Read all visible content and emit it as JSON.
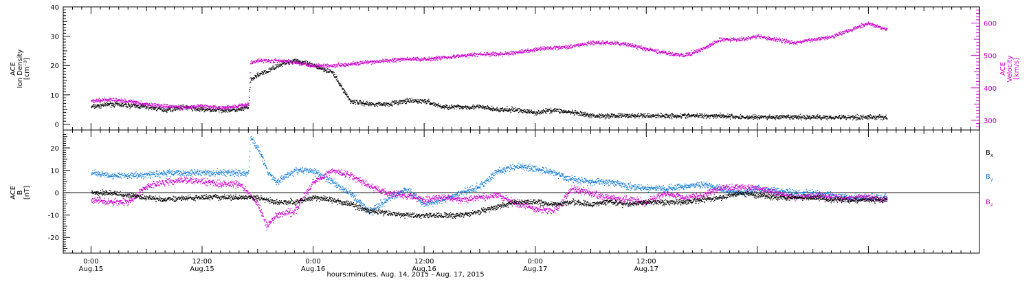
{
  "chart_data": [
    {
      "type": "scatter",
      "panel": "top",
      "ylabel_left": [
        "ACE",
        "Ion Density",
        "[cm⁻³]"
      ],
      "ylabel_right": [
        "ACE",
        "Velocity",
        "[km/s]"
      ],
      "ylim_left": [
        -2,
        40
      ],
      "ylim_right": [
        270,
        650
      ],
      "yticks_left": [
        0,
        10,
        20,
        30,
        40
      ],
      "yticks_right": [
        300,
        400,
        500,
        600
      ],
      "colors": {
        "density": "#000000",
        "velocity": "#cc00cc"
      },
      "series": [
        {
          "name": "",
          "axis": "left",
          "color": "#000000",
          "hours": [
            0,
            2,
            4,
            6,
            8,
            10,
            12,
            14,
            16,
            17,
            17.2,
            18,
            19,
            20,
            22,
            24,
            26,
            28,
            30,
            32,
            34,
            36,
            38,
            40,
            42,
            44,
            46,
            48,
            50,
            52,
            54,
            56,
            58,
            60,
            62,
            64,
            66,
            68,
            70,
            72,
            74,
            76,
            78,
            80,
            82,
            84,
            86
          ],
          "values": [
            6,
            7,
            6.5,
            6,
            5,
            6,
            5,
            5,
            5,
            6,
            15,
            17,
            18,
            20,
            22,
            20,
            18,
            8,
            7,
            7,
            8,
            8,
            6,
            6,
            6,
            5,
            5,
            4,
            5,
            4,
            3,
            3,
            3,
            3,
            3,
            3,
            3,
            3,
            2.5,
            2.5,
            2.5,
            2.5,
            2.5,
            2.5,
            2.5,
            2.5,
            2.5
          ]
        },
        {
          "name": "",
          "axis": "right",
          "color": "#cc00cc",
          "hours": [
            0,
            2,
            4,
            6,
            8,
            10,
            12,
            14,
            16,
            17,
            17.2,
            18,
            20,
            22,
            24,
            26,
            28,
            30,
            32,
            34,
            36,
            38,
            40,
            42,
            44,
            46,
            48,
            50,
            52,
            54,
            56,
            58,
            60,
            62,
            64,
            66,
            68,
            70,
            72,
            74,
            76,
            78,
            80,
            82,
            84,
            86
          ],
          "values": [
            360,
            365,
            360,
            350,
            345,
            340,
            345,
            340,
            345,
            350,
            480,
            485,
            485,
            480,
            470,
            470,
            475,
            480,
            485,
            490,
            490,
            495,
            500,
            505,
            505,
            510,
            520,
            525,
            530,
            540,
            540,
            535,
            520,
            510,
            500,
            520,
            550,
            550,
            560,
            550,
            540,
            550,
            560,
            580,
            600,
            580
          ]
        }
      ]
    },
    {
      "type": "scatter",
      "panel": "bottom",
      "ylabel_left": [
        "ACE",
        "B",
        "[nT]"
      ],
      "ylim": [
        -27,
        28
      ],
      "yticks": [
        -20,
        -10,
        0,
        10,
        20
      ],
      "series": [
        {
          "name": "Bx",
          "color": "#000000",
          "hours": [
            0,
            2,
            4,
            6,
            8,
            10,
            12,
            14,
            16,
            17,
            18,
            20,
            22,
            24,
            26,
            28,
            30,
            32,
            34,
            36,
            38,
            40,
            42,
            44,
            46,
            48,
            50,
            52,
            54,
            56,
            58,
            60,
            62,
            64,
            66,
            68,
            70,
            72,
            74,
            76,
            78,
            80,
            82,
            84,
            86
          ],
          "values": [
            0,
            0,
            -1,
            -2,
            -3,
            -2,
            -2,
            -2,
            -2,
            -2,
            -2,
            -4,
            -4,
            -2,
            -3,
            -5,
            -8,
            -9,
            -10,
            -10,
            -10,
            -10,
            -8,
            -6,
            -4,
            -4,
            -5,
            -4,
            -5,
            -4,
            -5,
            -4,
            -4,
            -4,
            -3,
            -2,
            0,
            -1,
            -2,
            -2,
            -2,
            -3,
            -3,
            -3,
            -3
          ]
        },
        {
          "name": "By",
          "color": "#1a7fd6",
          "hours": [
            0,
            2,
            4,
            6,
            8,
            10,
            12,
            14,
            16,
            17,
            17.2,
            18,
            19,
            20,
            22,
            24,
            26,
            28,
            30,
            32,
            34,
            36,
            38,
            40,
            42,
            44,
            46,
            48,
            50,
            52,
            54,
            56,
            58,
            60,
            62,
            64,
            66,
            68,
            70,
            72,
            74,
            76,
            78,
            80,
            82,
            84,
            86
          ],
          "values": [
            9,
            8,
            8,
            8,
            9,
            9,
            9,
            9,
            9,
            9,
            25,
            20,
            10,
            5,
            10,
            10,
            5,
            0,
            -8,
            -3,
            2,
            -5,
            -3,
            0,
            3,
            10,
            12,
            11,
            9,
            6,
            5,
            5,
            3,
            2,
            2,
            3,
            4,
            2,
            0,
            2,
            1,
            0,
            0,
            -1,
            -2,
            -2,
            -2
          ]
        },
        {
          "name": "Bz",
          "color": "#cc00cc",
          "hours": [
            0,
            2,
            4,
            6,
            8,
            10,
            12,
            14,
            16,
            17,
            18,
            19,
            20,
            22,
            24,
            26,
            28,
            30,
            32,
            34,
            36,
            38,
            40,
            42,
            44,
            46,
            48,
            50,
            52,
            54,
            56,
            58,
            60,
            62,
            64,
            66,
            68,
            70,
            72,
            74,
            76,
            78,
            80,
            82,
            84,
            86
          ],
          "values": [
            -3,
            -4,
            -4,
            3,
            5,
            6,
            5,
            4,
            4,
            0,
            -5,
            -15,
            -10,
            -8,
            5,
            10,
            8,
            3,
            0,
            -1,
            -3,
            -2,
            -3,
            -2,
            -1,
            -5,
            -7,
            -8,
            2,
            0,
            -2,
            -3,
            -4,
            0,
            -2,
            -1,
            2,
            3,
            2,
            0,
            -2,
            -1,
            -2,
            -2,
            -2,
            -3
          ]
        }
      ],
      "legend": [
        "Bx",
        "By",
        "Bz"
      ]
    }
  ],
  "xaxis": {
    "range_hours": [
      -3,
      96
    ],
    "ticks": [
      {
        "hour": 0,
        "time": "0:00",
        "date": "Aug.15"
      },
      {
        "hour": 12,
        "time": "12:00",
        "date": "Aug.15"
      },
      {
        "hour": 24,
        "time": "0:00",
        "date": "Aug.16"
      },
      {
        "hour": 36,
        "time": "12:00",
        "date": "Aug.16"
      },
      {
        "hour": 48,
        "time": "0:00",
        "date": "Aug.17"
      },
      {
        "hour": 60,
        "time": "12:00",
        "date": "Aug.17"
      }
    ],
    "label": "hours:minutes, Aug. 14, 2015 - Aug. 17, 2015"
  }
}
